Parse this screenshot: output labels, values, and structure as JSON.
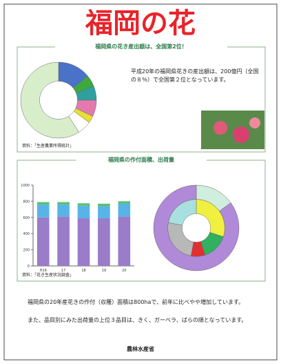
{
  "title": "福岡の花",
  "section1": {
    "heading": "福岡県の花き産出額は、全国第2位！",
    "text": "平成20年の福岡県花きの産出額は、200億円（全国の８％）で全国第２位となっています。",
    "source": "資料：「生産農業所得統計」"
  },
  "section2": {
    "heading": "福岡県の作付面積、出荷量",
    "source": "資料：「花き生産状況調査」",
    "paragraphs": [
      "福岡県の20年産花きの作付（収穫）面積は800haで、前年に比べやや増加しています。",
      "また、品目別にみた出荷量の上位３品目は、きく、ガーベラ、ばらの順となっています。"
    ]
  },
  "footer": "農林水産省",
  "chart_data": [
    {
      "type": "pie",
      "values": [
        14,
        5,
        6,
        7,
        3,
        6,
        59
      ],
      "colors": [
        "#4a72c8",
        "#3fa83f",
        "#2fa0a0",
        "#e27ab0",
        "#e8e030",
        "#ffffff",
        "#d8eecb"
      ]
    },
    {
      "type": "bar",
      "categories": [
        "H16",
        "17",
        "18",
        "19",
        "20"
      ],
      "series": [
        {
          "color": "#9a7cc8",
          "values": [
            600,
            610,
            590,
            590,
            610
          ]
        },
        {
          "color": "#58b4e8",
          "values": [
            160,
            150,
            155,
            150,
            160
          ]
        },
        {
          "color": "#58c070",
          "values": [
            30,
            30,
            30,
            30,
            30
          ]
        }
      ],
      "ylim": [
        0,
        1000
      ],
      "yticks": [
        0,
        200,
        400,
        600,
        800,
        1000
      ]
    },
    {
      "type": "pie",
      "series": [
        {
          "values": [
            15,
            85
          ],
          "colors": [
            "#cfeedd",
            "#b08ad8"
          ]
        },
        {
          "values": [
            30,
            15,
            8,
            25,
            22
          ],
          "colors": [
            "#f0f040",
            "#30b060",
            "#e03030",
            "#b8b8b8",
            "#a8e0e0"
          ]
        }
      ]
    }
  ]
}
